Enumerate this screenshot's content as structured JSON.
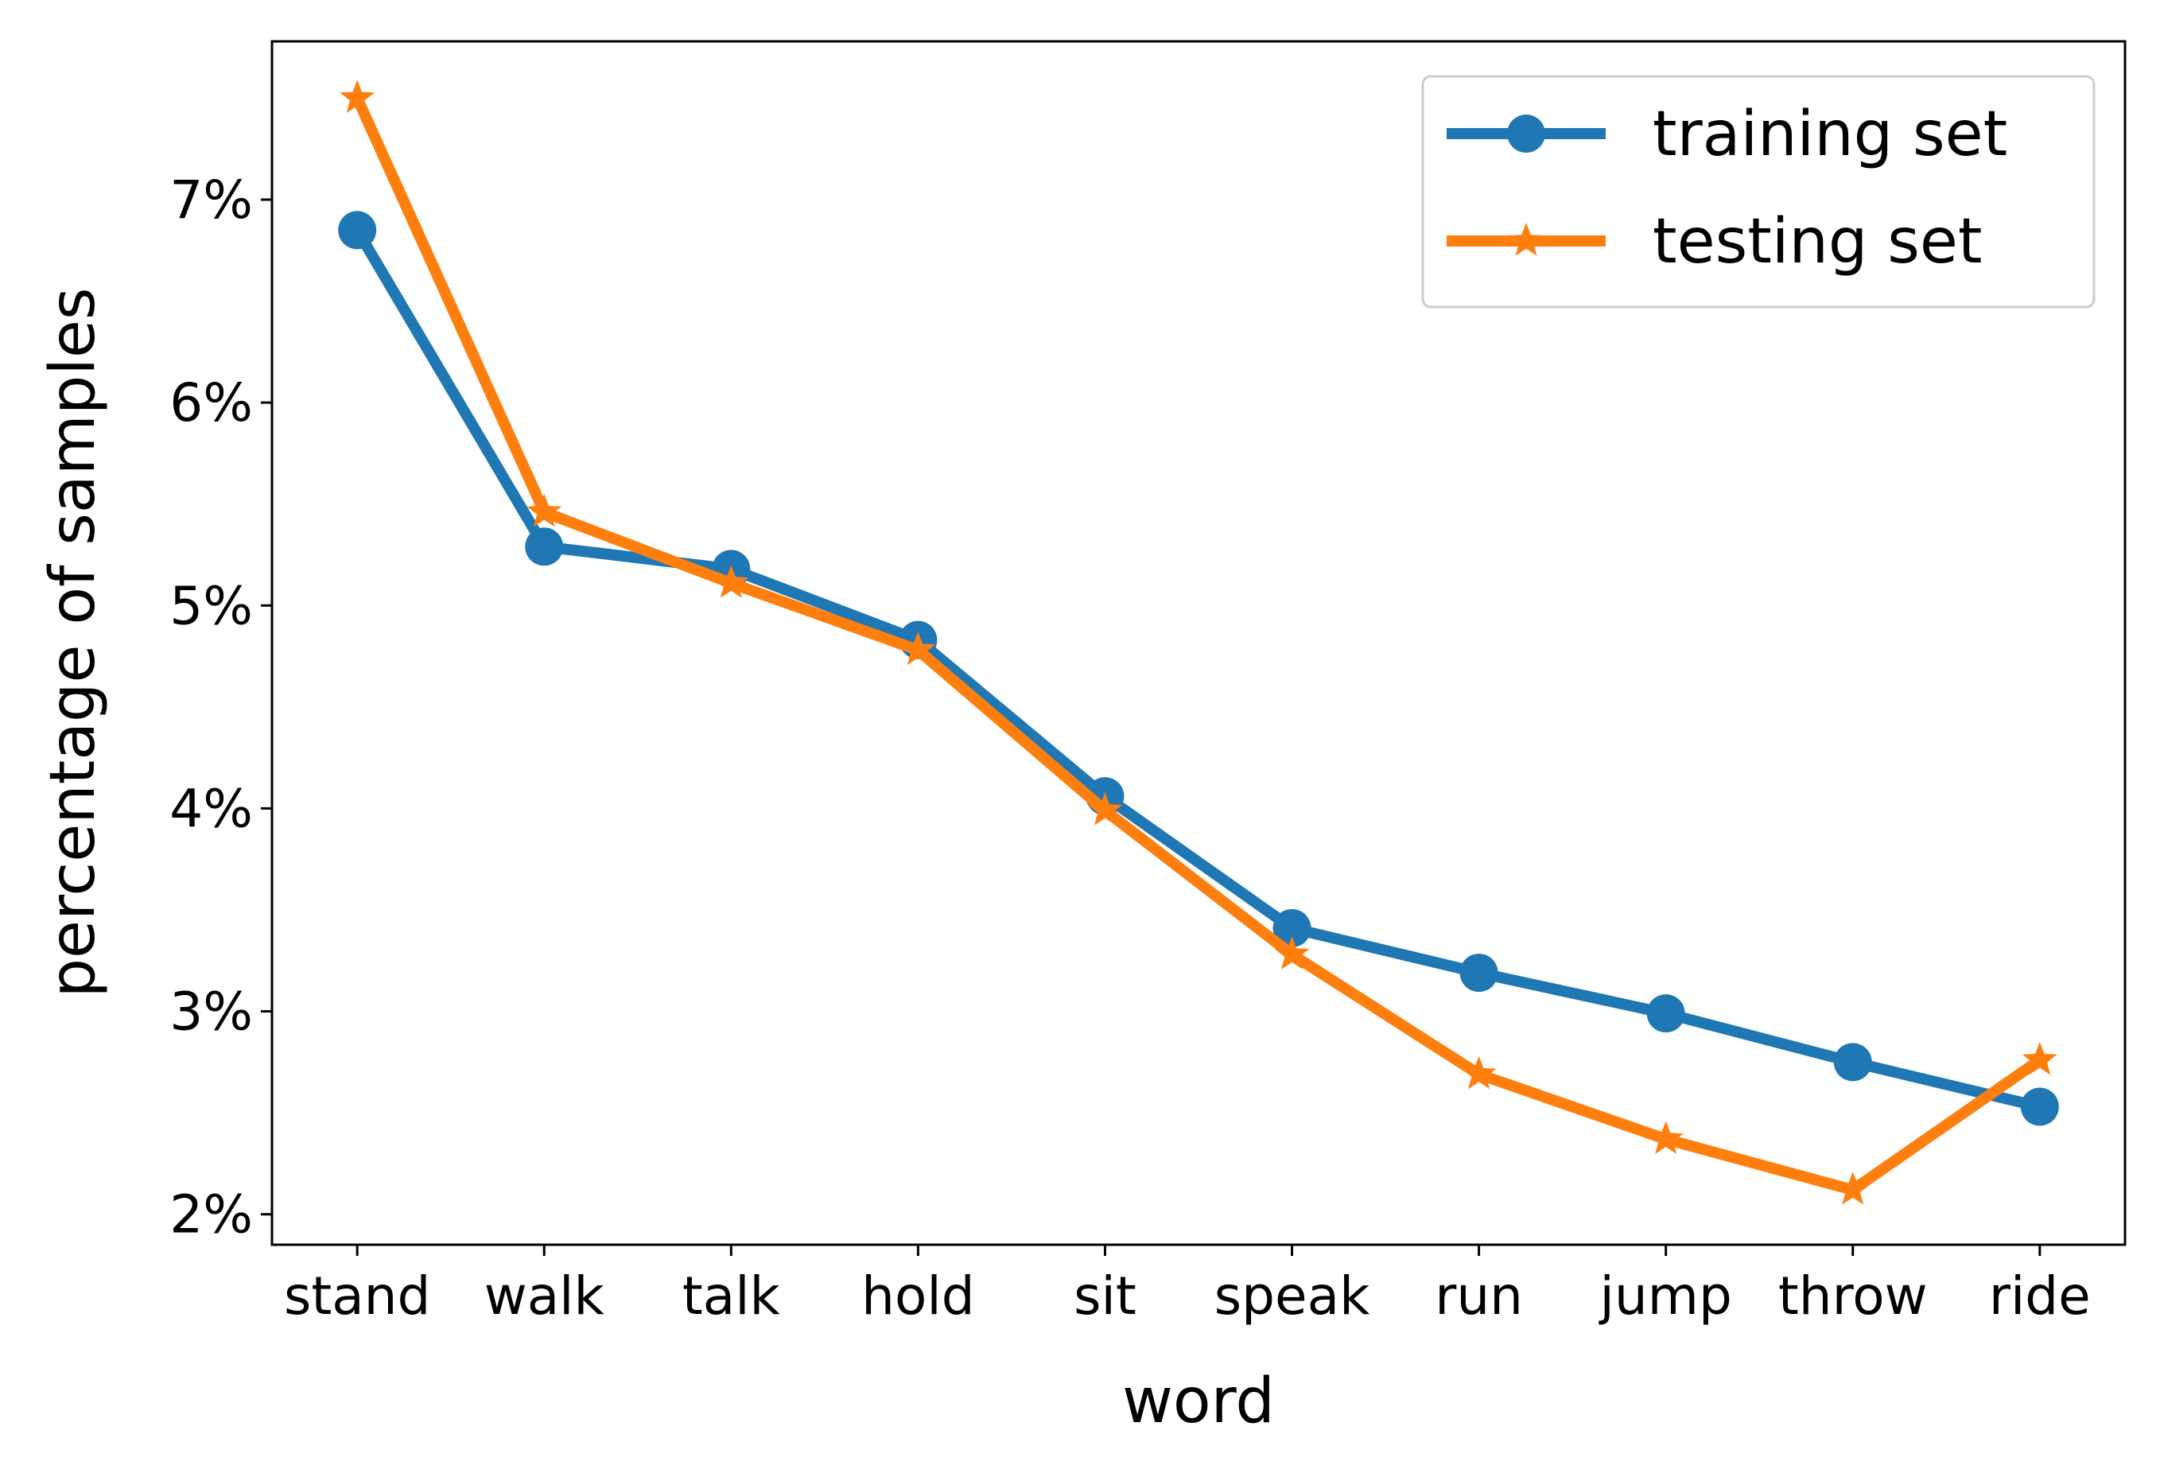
{
  "chart_data": {
    "type": "line",
    "title": "",
    "xlabel": "word",
    "ylabel": "percentage of samples",
    "categories": [
      "stand",
      "walk",
      "talk",
      "hold",
      "sit",
      "speak",
      "run",
      "jump",
      "throw",
      "ride"
    ],
    "ylim": [
      1.85,
      7.78
    ],
    "yticks": [
      2,
      3,
      4,
      5,
      6,
      7
    ],
    "ytick_labels": [
      "2%",
      "3%",
      "4%",
      "5%",
      "6%",
      "7%"
    ],
    "grid": false,
    "legend_position": "upper right",
    "series": [
      {
        "name": "training set",
        "color": "#1f77b4",
        "marker": "circle",
        "values": [
          6.85,
          5.29,
          5.18,
          4.83,
          4.06,
          3.41,
          3.19,
          2.99,
          2.75,
          2.53
        ]
      },
      {
        "name": "testing set",
        "color": "#ff7f0e",
        "marker": "star",
        "values": [
          7.5,
          5.46,
          5.11,
          4.78,
          3.99,
          3.28,
          2.69,
          2.37,
          2.12,
          2.76
        ]
      }
    ]
  }
}
